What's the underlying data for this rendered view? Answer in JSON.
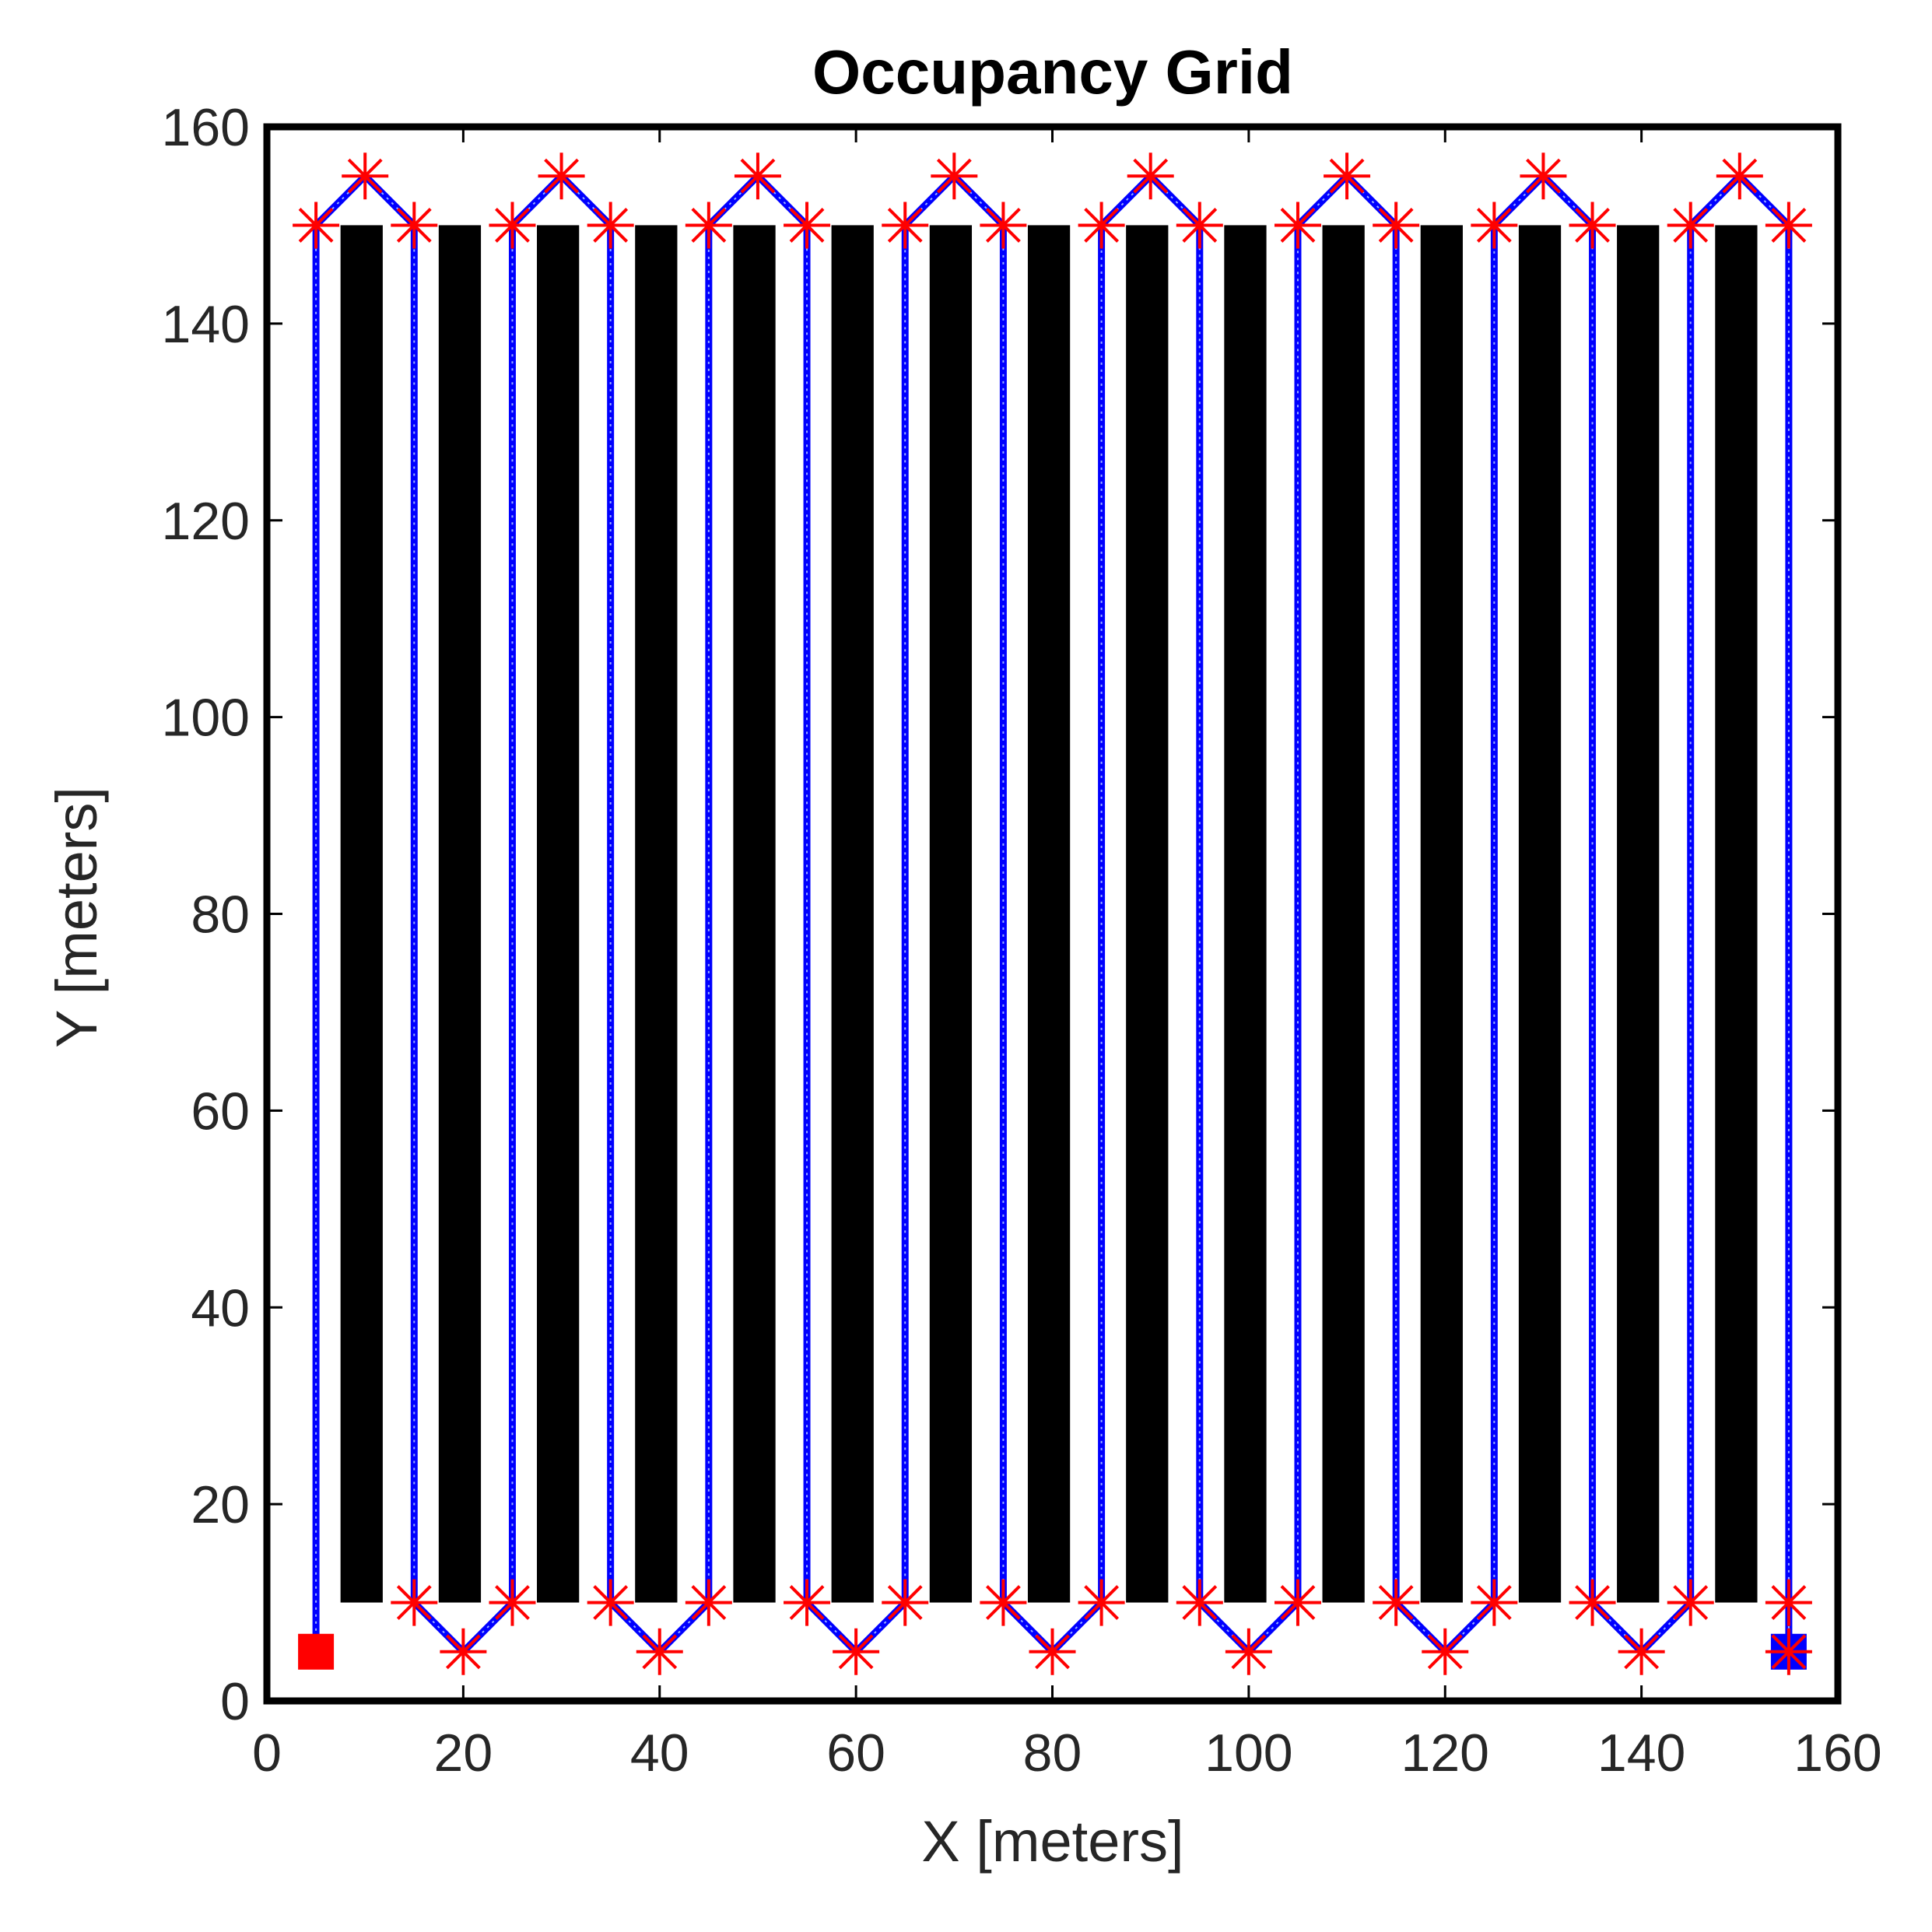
{
  "chart_data": {
    "type": "occupancy-grid-path",
    "title": "Occupancy Grid",
    "xlabel": "X [meters]",
    "ylabel": "Y [meters]",
    "xlim": [
      0,
      160
    ],
    "ylim": [
      0,
      160
    ],
    "xticks": [
      "0",
      "20",
      "40",
      "60",
      "80",
      "100",
      "120",
      "140",
      "160"
    ],
    "yticks": [
      "0",
      "20",
      "40",
      "60",
      "80",
      "100",
      "120",
      "140",
      "160"
    ],
    "obstacles": [
      {
        "x0": 7.5,
        "x1": 11.8,
        "y0": 10,
        "y1": 150
      },
      {
        "x0": 17.5,
        "x1": 21.8,
        "y0": 10,
        "y1": 150
      },
      {
        "x0": 27.5,
        "x1": 31.8,
        "y0": 10,
        "y1": 150
      },
      {
        "x0": 37.5,
        "x1": 41.8,
        "y0": 10,
        "y1": 150
      },
      {
        "x0": 47.5,
        "x1": 51.8,
        "y0": 10,
        "y1": 150
      },
      {
        "x0": 57.5,
        "x1": 61.8,
        "y0": 10,
        "y1": 150
      },
      {
        "x0": 67.5,
        "x1": 71.8,
        "y0": 10,
        "y1": 150
      },
      {
        "x0": 77.5,
        "x1": 81.8,
        "y0": 10,
        "y1": 150
      },
      {
        "x0": 87.5,
        "x1": 91.8,
        "y0": 10,
        "y1": 150
      },
      {
        "x0": 97.5,
        "x1": 101.8,
        "y0": 10,
        "y1": 150
      },
      {
        "x0": 107.5,
        "x1": 111.8,
        "y0": 10,
        "y1": 150
      },
      {
        "x0": 117.5,
        "x1": 121.8,
        "y0": 10,
        "y1": 150
      },
      {
        "x0": 127.5,
        "x1": 131.8,
        "y0": 10,
        "y1": 150
      },
      {
        "x0": 137.5,
        "x1": 141.8,
        "y0": 10,
        "y1": 150
      },
      {
        "x0": 147.5,
        "x1": 151.8,
        "y0": 10,
        "y1": 150
      }
    ],
    "path": {
      "color": "#0000ff",
      "points": [
        [
          5,
          5
        ],
        [
          5,
          150
        ],
        [
          10,
          155
        ],
        [
          15,
          150
        ],
        [
          15,
          10
        ],
        [
          20,
          5
        ],
        [
          25,
          10
        ],
        [
          25,
          150
        ],
        [
          30,
          155
        ],
        [
          35,
          150
        ],
        [
          35,
          10
        ],
        [
          40,
          5
        ],
        [
          45,
          10
        ],
        [
          45,
          150
        ],
        [
          50,
          155
        ],
        [
          55,
          150
        ],
        [
          55,
          10
        ],
        [
          60,
          5
        ],
        [
          65,
          10
        ],
        [
          65,
          150
        ],
        [
          70,
          155
        ],
        [
          75,
          150
        ],
        [
          75,
          10
        ],
        [
          80,
          5
        ],
        [
          85,
          10
        ],
        [
          85,
          150
        ],
        [
          90,
          155
        ],
        [
          95,
          150
        ],
        [
          95,
          10
        ],
        [
          100,
          5
        ],
        [
          105,
          10
        ],
        [
          105,
          150
        ],
        [
          110,
          155
        ],
        [
          115,
          150
        ],
        [
          115,
          10
        ],
        [
          120,
          5
        ],
        [
          125,
          10
        ],
        [
          125,
          150
        ],
        [
          130,
          155
        ],
        [
          135,
          150
        ],
        [
          135,
          10
        ],
        [
          140,
          5
        ],
        [
          145,
          10
        ],
        [
          145,
          150
        ],
        [
          150,
          155
        ],
        [
          155,
          150
        ],
        [
          155,
          10
        ],
        [
          155,
          5
        ]
      ]
    },
    "waypoints": {
      "color": "#ff0000",
      "marker": "asterisk",
      "points": [
        [
          5,
          150
        ],
        [
          10,
          155
        ],
        [
          15,
          150
        ],
        [
          15,
          10
        ],
        [
          20,
          5
        ],
        [
          25,
          10
        ],
        [
          25,
          150
        ],
        [
          30,
          155
        ],
        [
          35,
          150
        ],
        [
          35,
          10
        ],
        [
          40,
          5
        ],
        [
          45,
          10
        ],
        [
          45,
          150
        ],
        [
          50,
          155
        ],
        [
          55,
          150
        ],
        [
          55,
          10
        ],
        [
          60,
          5
        ],
        [
          65,
          10
        ],
        [
          65,
          150
        ],
        [
          70,
          155
        ],
        [
          75,
          150
        ],
        [
          75,
          10
        ],
        [
          80,
          5
        ],
        [
          85,
          10
        ],
        [
          85,
          150
        ],
        [
          90,
          155
        ],
        [
          95,
          150
        ],
        [
          95,
          10
        ],
        [
          100,
          5
        ],
        [
          105,
          10
        ],
        [
          105,
          150
        ],
        [
          110,
          155
        ],
        [
          115,
          150
        ],
        [
          115,
          10
        ],
        [
          120,
          5
        ],
        [
          125,
          10
        ],
        [
          125,
          150
        ],
        [
          130,
          155
        ],
        [
          135,
          150
        ],
        [
          135,
          10
        ],
        [
          140,
          5
        ],
        [
          145,
          10
        ],
        [
          145,
          150
        ],
        [
          150,
          155
        ],
        [
          155,
          150
        ],
        [
          155,
          10
        ],
        [
          155,
          5
        ]
      ]
    },
    "start": {
      "x": 5,
      "y": 5,
      "color": "#ff0000",
      "marker": "square"
    },
    "goal": {
      "x": 155,
      "y": 5,
      "color": "#0000ff",
      "marker": "square"
    },
    "grid": false
  }
}
